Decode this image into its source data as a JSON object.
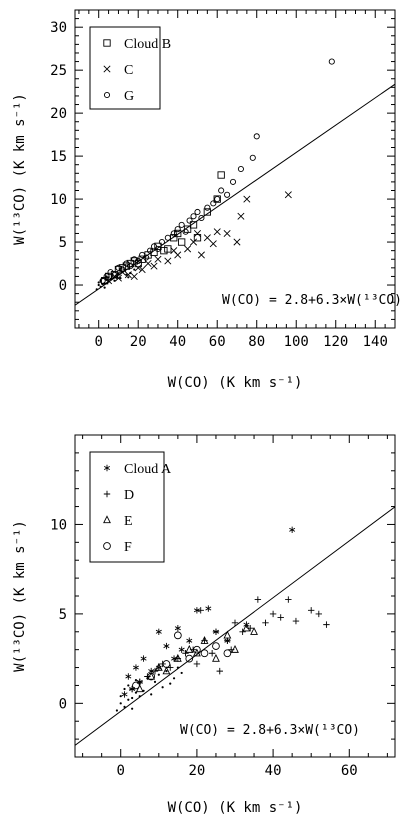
{
  "chart_data": [
    {
      "type": "scatter",
      "title": "",
      "xlabel": "W(CO) (K km s⁻¹)",
      "ylabel": "W(¹³CO) (K km s⁻¹)",
      "xlim": [
        -12,
        150
      ],
      "ylim": [
        -5,
        32
      ],
      "xticks": [
        0,
        20,
        40,
        60,
        80,
        100,
        120,
        140
      ],
      "yticks": [
        0,
        5,
        10,
        15,
        20,
        25,
        30
      ],
      "xtick_labels": [
        "0",
        "20",
        "40",
        "60",
        "80",
        "100",
        "120",
        "140"
      ],
      "ytick_labels": [
        "0",
        "5",
        "10",
        "15",
        "20",
        "25",
        "30"
      ],
      "legend": {
        "placement": "top-left",
        "entries": [
          {
            "label": "Cloud B",
            "marker": "square"
          },
          {
            "label": "C",
            "marker": "cross"
          },
          {
            "label": "G",
            "marker": "ring"
          }
        ]
      },
      "annotation": "W(CO) = 2.8+6.3×W(¹³CO)",
      "fit_line": {
        "intercept": 2.8,
        "slope": 6.3,
        "x_from": "W13CO"
      },
      "series": [
        {
          "name": "Cloud B",
          "marker": "square",
          "x": [
            3,
            5,
            8,
            10,
            12,
            14,
            16,
            18,
            20,
            22,
            25,
            28,
            30,
            33,
            35,
            38,
            40,
            42,
            45,
            48,
            50,
            55,
            60,
            62
          ],
          "y": [
            0.5,
            1.0,
            1.2,
            1.8,
            2.0,
            2.2,
            2.5,
            2.8,
            2.5,
            3.0,
            3.5,
            3.8,
            4.5,
            4.0,
            4.2,
            5.5,
            6.0,
            5.0,
            6.5,
            7.0,
            5.5,
            8.5,
            10.0,
            12.8
          ]
        },
        {
          "name": "C",
          "marker": "cross",
          "x": [
            5,
            8,
            10,
            12,
            15,
            18,
            20,
            22,
            25,
            28,
            30,
            35,
            38,
            40,
            45,
            48,
            50,
            52,
            55,
            58,
            60,
            65,
            70,
            72,
            75,
            96
          ],
          "y": [
            0.5,
            1.0,
            0.8,
            1.5,
            1.2,
            1.0,
            2.0,
            1.8,
            2.5,
            2.2,
            3.0,
            2.8,
            4.0,
            3.5,
            4.2,
            5.0,
            6.0,
            3.5,
            5.5,
            4.8,
            6.2,
            6.0,
            5.0,
            8.0,
            10.0,
            10.5
          ]
        },
        {
          "name": "G",
          "marker": "ring",
          "x": [
            2,
            4,
            6,
            8,
            10,
            12,
            14,
            16,
            18,
            20,
            22,
            24,
            26,
            28,
            30,
            32,
            35,
            38,
            40,
            42,
            44,
            46,
            48,
            50,
            52,
            55,
            58,
            60,
            62,
            65,
            68,
            72,
            78,
            80,
            118
          ],
          "y": [
            0.5,
            1.0,
            1.5,
            1.2,
            2.0,
            1.8,
            2.5,
            2.2,
            3.0,
            2.8,
            3.5,
            3.2,
            4.0,
            4.5,
            4.2,
            5.0,
            5.5,
            6.0,
            6.5,
            7.0,
            6.2,
            7.5,
            8.0,
            8.5,
            7.8,
            9.0,
            9.5,
            10.0,
            11.0,
            10.5,
            12.0,
            13.5,
            14.8,
            17.3,
            26.0
          ]
        },
        {
          "name": "",
          "marker": "dot",
          "x": [
            -1,
            0,
            0,
            1,
            1,
            2,
            2,
            3,
            3,
            4,
            4,
            5,
            5,
            6,
            7,
            8,
            9,
            10,
            11,
            12,
            14,
            15,
            16,
            18
          ],
          "y": [
            -0.5,
            0,
            0.3,
            -0.2,
            0.5,
            0.1,
            0.8,
            0.2,
            -0.3,
            0.6,
            1.0,
            0.4,
            0.9,
            0.7,
            1.2,
            0.5,
            1.0,
            1.3,
            0.8,
            1.5,
            1.2,
            0.9,
            1.4,
            1.8
          ]
        }
      ]
    },
    {
      "type": "scatter",
      "title": "",
      "xlabel": "W(CO) (K km s⁻¹)",
      "ylabel": "W(¹³CO) (K km s⁻¹)",
      "xlim": [
        -12,
        72
      ],
      "ylim": [
        -3,
        15
      ],
      "xticks": [
        0,
        20,
        40,
        60
      ],
      "yticks": [
        0,
        5,
        10
      ],
      "xtick_labels": [
        "0",
        "20",
        "40",
        "60"
      ],
      "ytick_labels": [
        "0",
        "5",
        "10"
      ],
      "legend": {
        "placement": "top-left",
        "entries": [
          {
            "label": "Cloud A",
            "marker": "asterisk"
          },
          {
            "label": "D",
            "marker": "plus"
          },
          {
            "label": "E",
            "marker": "triangle"
          },
          {
            "label": "F",
            "marker": "circle"
          }
        ]
      },
      "annotation": "W(CO) = 2.8+6.3×W(¹³CO)",
      "fit_line": {
        "intercept": 2.8,
        "slope": 6.3,
        "x_from": "W13CO"
      },
      "series": [
        {
          "name": "Cloud A",
          "marker": "asterisk",
          "x": [
            1,
            2,
            3,
            4,
            5,
            6,
            8,
            10,
            10,
            12,
            14,
            15,
            16,
            18,
            20,
            23,
            25,
            28,
            33,
            45
          ],
          "y": [
            0.5,
            1.5,
            0.8,
            2.0,
            1.2,
            2.5,
            1.8,
            4.0,
            2.0,
            3.2,
            2.5,
            4.2,
            3.0,
            3.5,
            5.2,
            5.3,
            4.0,
            3.5,
            4.4,
            9.7
          ]
        },
        {
          "name": "D",
          "marker": "plus",
          "x": [
            3,
            5,
            7,
            9,
            11,
            13,
            15,
            17,
            19,
            20,
            21,
            22,
            24,
            25,
            26,
            28,
            29,
            30,
            32,
            34,
            36,
            38,
            40,
            42,
            44,
            46,
            50,
            52,
            54
          ],
          "y": [
            0.8,
            1.2,
            1.5,
            1.8,
            2.2,
            2.0,
            2.5,
            2.8,
            3.0,
            2.2,
            5.2,
            3.5,
            2.8,
            4.0,
            1.8,
            3.5,
            3.0,
            4.5,
            4.0,
            4.2,
            5.8,
            4.5,
            5.0,
            4.8,
            5.8,
            4.6,
            5.2,
            5.0,
            4.4
          ]
        },
        {
          "name": "E",
          "marker": "triangle",
          "x": [
            5,
            8,
            10,
            12,
            15,
            18,
            20,
            22,
            25,
            28,
            30,
            33,
            35
          ],
          "y": [
            0.8,
            1.5,
            2.0,
            1.8,
            2.5,
            3.0,
            2.8,
            3.5,
            2.5,
            3.8,
            3.0,
            4.2,
            4.0
          ]
        },
        {
          "name": "F",
          "marker": "circle",
          "x": [
            4,
            8,
            12,
            15,
            18,
            20,
            22,
            25,
            28
          ],
          "y": [
            1.0,
            1.5,
            2.2,
            3.8,
            2.5,
            3.0,
            2.8,
            3.2,
            2.8
          ]
        },
        {
          "name": "",
          "marker": "dot",
          "x": [
            -1,
            0,
            0,
            1,
            1,
            2,
            2,
            3,
            3,
            4,
            4,
            5,
            5,
            6,
            7,
            8,
            9,
            10,
            11,
            12,
            13,
            14,
            15,
            16
          ],
          "y": [
            -0.4,
            0,
            0.4,
            -0.2,
            0.8,
            0.2,
            1.0,
            0.3,
            -0.3,
            0.6,
            1.3,
            0.4,
            1.1,
            0.7,
            1.4,
            0.5,
            1.2,
            1.6,
            0.9,
            1.8,
            1.1,
            1.4,
            2.0,
            1.7
          ]
        }
      ]
    }
  ]
}
